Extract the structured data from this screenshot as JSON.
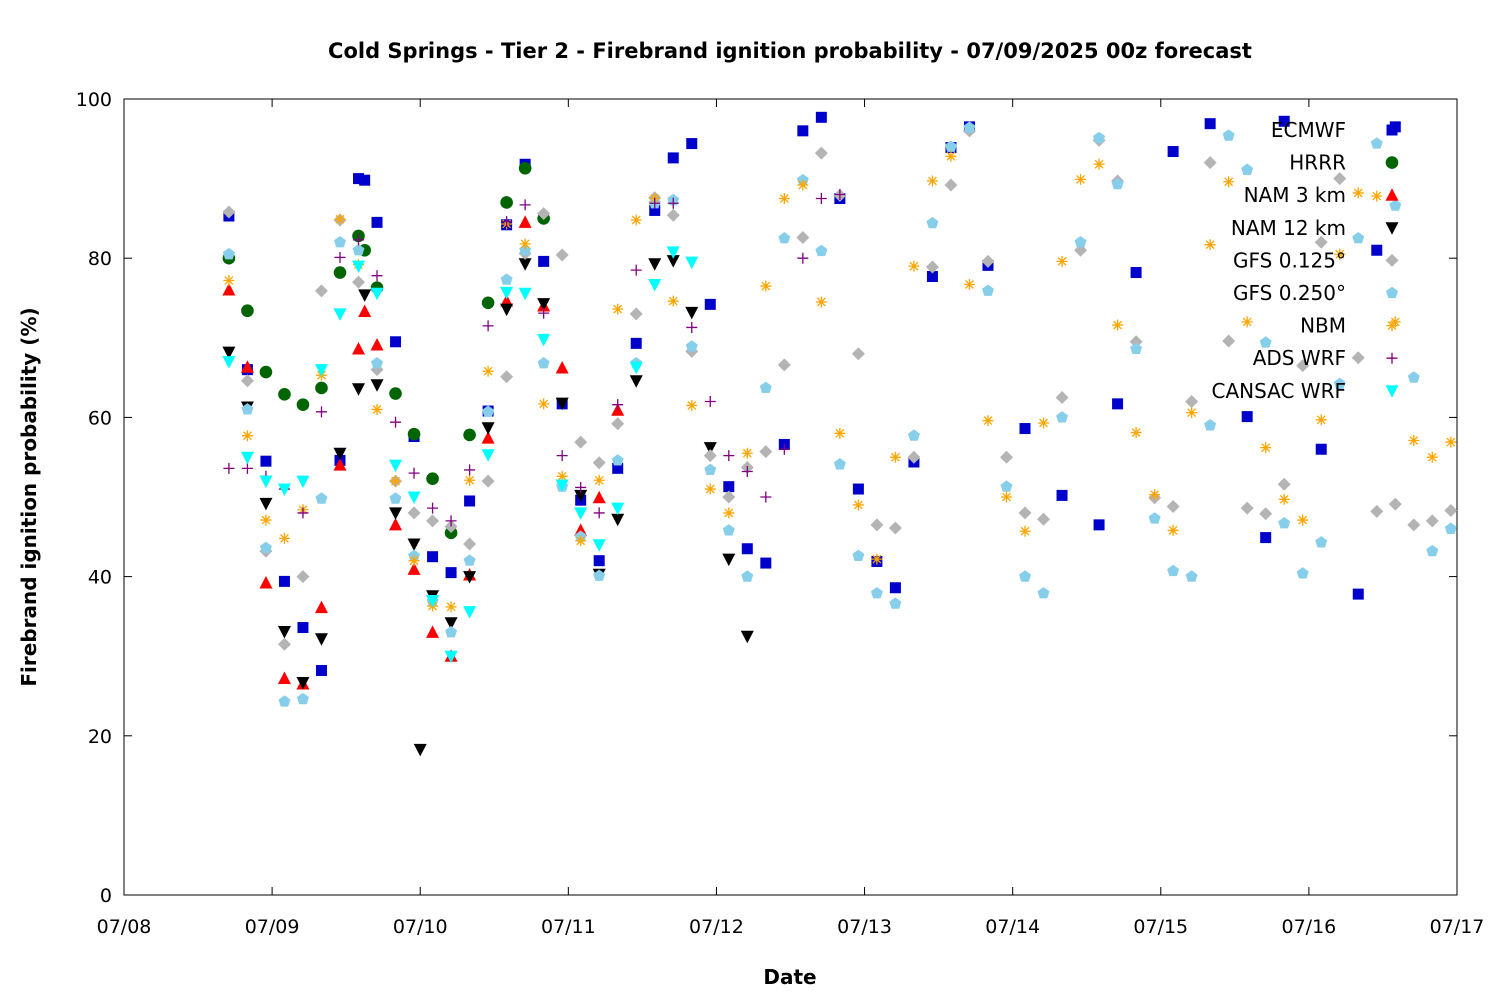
{
  "chart_data": {
    "type": "scatter",
    "title": "Cold Springs - Tier 2 - Firebrand ignition probability - 07/09/2025 00z forecast",
    "xlabel": "Date",
    "ylabel": "Firebrand ignition probability (%)",
    "x_axis": {
      "unit": "date",
      "range": [
        "07/08",
        "07/17"
      ],
      "ticks": [
        "07/08",
        "07/09",
        "07/10",
        "07/11",
        "07/12",
        "07/13",
        "07/14",
        "07/15",
        "07/16",
        "07/17"
      ]
    },
    "ylim": [
      0,
      100
    ],
    "y_ticks": [
      "0",
      "20",
      "40",
      "60",
      "80",
      "100"
    ],
    "grid": false,
    "legend_position": "top-right",
    "series": [
      {
        "name": "ECMWF",
        "color": "#0000cd",
        "marker": "square",
        "x": [
          "07/08 17:00",
          "07/08 20:00",
          "07/08 23:00",
          "07/09 02:00",
          "07/09 05:00",
          "07/09 08:00",
          "07/09 11:00",
          "07/09 14:00",
          "07/09 15:00",
          "07/09 17:00",
          "07/09 20:00",
          "07/09 23:00",
          "07/10 02:00",
          "07/10 05:00",
          "07/10 08:00",
          "07/10 11:00",
          "07/10 14:00",
          "07/10 17:00",
          "07/10 20:00",
          "07/10 23:00",
          "07/11 02:00",
          "07/11 05:00",
          "07/11 08:00",
          "07/11 11:00",
          "07/11 14:00",
          "07/11 17:00",
          "07/11 20:00",
          "07/11 23:00",
          "07/12 02:00",
          "07/12 05:00",
          "07/12 08:00",
          "07/12 11:00",
          "07/12 14:00",
          "07/12 17:00",
          "07/12 20:00",
          "07/12 23:00",
          "07/13 02:00",
          "07/13 05:00",
          "07/13 08:00",
          "07/13 11:00",
          "07/13 14:00",
          "07/13 17:00",
          "07/13 20:00",
          "07/14 02:00",
          "07/14 08:00",
          "07/14 14:00",
          "07/14 17:00",
          "07/14 20:00",
          "07/15 02:00",
          "07/15 08:00",
          "07/15 14:00",
          "07/15 17:00",
          "07/15 20:00",
          "07/16 02:00",
          "07/16 08:00",
          "07/16 11:00",
          "07/16 14:00"
        ],
        "values": [
          85.3,
          66,
          54.5,
          39.4,
          33.6,
          28.2,
          54.6,
          90,
          89.8,
          84.5,
          69.5,
          57.6,
          42.5,
          40.5,
          49.5,
          60.8,
          84.2,
          91.8,
          79.6,
          61.7,
          49.6,
          42,
          53.6,
          69.3,
          86,
          92.6,
          94.4,
          74.2,
          51.3,
          43.5,
          41.7,
          56.6,
          96,
          97.7,
          87.5,
          51,
          41.9,
          38.6,
          54.4,
          77.7,
          93.9,
          96.5,
          79.1,
          58.6,
          50.2,
          46.5,
          61.7,
          78.2,
          93.4,
          96.9,
          60.1,
          44.9,
          97.2,
          56,
          37.8,
          81,
          96.5
        ]
      },
      {
        "name": "HRRR",
        "color": "#006400",
        "marker": "circle",
        "x": [
          "07/08 17:00",
          "07/08 20:00",
          "07/08 23:00",
          "07/09 02:00",
          "07/09 05:00",
          "07/09 08:00",
          "07/09 11:00",
          "07/09 14:00",
          "07/09 15:00",
          "07/09 17:00",
          "07/09 20:00",
          "07/09 23:00",
          "07/10 02:00",
          "07/10 05:00",
          "07/10 08:00",
          "07/10 11:00",
          "07/10 14:00",
          "07/10 17:00",
          "07/10 20:00"
        ],
        "values": [
          80,
          73.4,
          65.7,
          62.9,
          61.6,
          63.7,
          78.2,
          82.8,
          81,
          76.3,
          63,
          57.9,
          52.3,
          45.5,
          57.8,
          74.4,
          87,
          91.3,
          85
        ]
      },
      {
        "name": "NAM 3 km",
        "color": "#ff0000",
        "marker": "triangle-up",
        "x": [
          "07/08 17:00",
          "07/08 20:00",
          "07/08 23:00",
          "07/09 02:00",
          "07/09 05:00",
          "07/09 08:00",
          "07/09 11:00",
          "07/09 14:00",
          "07/09 15:00",
          "07/09 17:00",
          "07/09 20:00",
          "07/09 23:00",
          "07/10 02:00",
          "07/10 05:00",
          "07/10 08:00",
          "07/10 11:00",
          "07/10 14:00",
          "07/10 17:00",
          "07/10 20:00",
          "07/10 23:00",
          "07/11 02:00",
          "07/11 05:00",
          "07/11 08:00"
        ],
        "values": [
          76,
          66.3,
          39.2,
          27.2,
          26.5,
          36.1,
          54,
          68.6,
          73.3,
          69.1,
          46.5,
          40.9,
          33,
          30,
          40.2,
          57.4,
          74.6,
          84.5,
          74,
          66.2,
          45.8,
          49.9,
          60.9
        ]
      },
      {
        "name": "NAM 12 km",
        "color": "#000000",
        "marker": "triangle-down",
        "x": [
          "07/08 17:00",
          "07/08 20:00",
          "07/08 23:00",
          "07/09 02:00",
          "07/09 05:00",
          "07/09 08:00",
          "07/09 11:00",
          "07/09 14:00",
          "07/09 15:00",
          "07/09 17:00",
          "07/09 20:00",
          "07/09 23:00",
          "07/10 00:00",
          "07/10 02:00",
          "07/10 05:00",
          "07/10 08:00",
          "07/10 11:00",
          "07/10 14:00",
          "07/10 17:00",
          "07/10 20:00",
          "07/10 23:00",
          "07/11 02:00",
          "07/11 05:00",
          "07/11 08:00",
          "07/11 11:00",
          "07/11 14:00",
          "07/11 17:00",
          "07/11 20:00",
          "07/11 23:00",
          "07/12 02:00",
          "07/12 05:00"
        ],
        "values": [
          68.2,
          61.3,
          49.2,
          33.1,
          26.7,
          32.2,
          55.5,
          63.6,
          75.4,
          64.1,
          48,
          44.1,
          18.3,
          37.6,
          34.2,
          40,
          58.7,
          73.6,
          79.3,
          74.3,
          61.8,
          50.2,
          40.3,
          47.2,
          64.6,
          79.3,
          79.7,
          73.2,
          56.2,
          42.2,
          32.5
        ]
      },
      {
        "name": "GFS 0.125°",
        "color": "#b4b4b4",
        "marker": "diamond",
        "x": [
          "07/08 17:00",
          "07/08 20:00",
          "07/08 23:00",
          "07/09 02:00",
          "07/09 05:00",
          "07/09 08:00",
          "07/09 11:00",
          "07/09 14:00",
          "07/09 17:00",
          "07/09 20:00",
          "07/09 23:00",
          "07/10 02:00",
          "07/10 05:00",
          "07/10 08:00",
          "07/10 11:00",
          "07/10 14:00",
          "07/10 17:00",
          "07/10 20:00",
          "07/10 23:00",
          "07/11 02:00",
          "07/11 05:00",
          "07/11 08:00",
          "07/11 11:00",
          "07/11 14:00",
          "07/11 17:00",
          "07/11 20:00",
          "07/11 23:00",
          "07/12 02:00",
          "07/12 05:00",
          "07/12 08:00",
          "07/12 11:00",
          "07/12 14:00",
          "07/12 17:00",
          "07/12 20:00",
          "07/12 23:00",
          "07/13 02:00",
          "07/13 05:00",
          "07/13 08:00",
          "07/13 11:00",
          "07/13 14:00",
          "07/13 17:00",
          "07/13 20:00",
          "07/13 23:00",
          "07/14 02:00",
          "07/14 05:00",
          "07/14 08:00",
          "07/14 11:00",
          "07/14 14:00",
          "07/14 17:00",
          "07/14 20:00",
          "07/14 23:00",
          "07/15 02:00",
          "07/15 05:00",
          "07/15 08:00",
          "07/15 11:00",
          "07/15 14:00",
          "07/15 17:00",
          "07/15 20:00",
          "07/15 23:00",
          "07/16 02:00",
          "07/16 05:00",
          "07/16 08:00",
          "07/16 11:00",
          "07/16 14:00",
          "07/16 17:00",
          "07/16 20:00",
          "07/16 23:00"
        ],
        "values": [
          85.8,
          64.6,
          43.2,
          31.5,
          40,
          75.9,
          84.8,
          77,
          66,
          52,
          48,
          47,
          46.3,
          44.1,
          52,
          65.1,
          80.6,
          85.6,
          80.4,
          56.9,
          54.3,
          59.2,
          73,
          87.6,
          85.4,
          68.3,
          55.2,
          50,
          53.7,
          55.7,
          66.6,
          82.6,
          93.2,
          87.9,
          68,
          46.5,
          46.1,
          55,
          78.9,
          89.2,
          96,
          79.6,
          55,
          48,
          47.2,
          62.5,
          81,
          94.8,
          89.7,
          69.5,
          49.9,
          48.8,
          62,
          92,
          69.6,
          48.6,
          47.9,
          51.6,
          66.5,
          82,
          90,
          67.5,
          48.2,
          49.1,
          46.5,
          47,
          48.3
        ]
      },
      {
        "name": "GFS 0.250°",
        "color": "#87ceeb",
        "marker": "pentagon",
        "x": [
          "07/08 17:00",
          "07/08 20:00",
          "07/08 23:00",
          "07/09 02:00",
          "07/09 05:00",
          "07/09 08:00",
          "07/09 11:00",
          "07/09 14:00",
          "07/09 17:00",
          "07/09 20:00",
          "07/09 23:00",
          "07/10 02:00",
          "07/10 05:00",
          "07/10 08:00",
          "07/10 11:00",
          "07/10 14:00",
          "07/10 17:00",
          "07/10 20:00",
          "07/10 23:00",
          "07/11 02:00",
          "07/11 05:00",
          "07/11 08:00",
          "07/11 11:00",
          "07/11 14:00",
          "07/11 17:00",
          "07/11 20:00",
          "07/11 23:00",
          "07/12 02:00",
          "07/12 05:00",
          "07/12 08:00",
          "07/12 11:00",
          "07/12 14:00",
          "07/12 17:00",
          "07/12 20:00",
          "07/12 23:00",
          "07/13 02:00",
          "07/13 05:00",
          "07/13 08:00",
          "07/13 11:00",
          "07/13 14:00",
          "07/13 17:00",
          "07/13 20:00",
          "07/13 23:00",
          "07/14 02:00",
          "07/14 05:00",
          "07/14 08:00",
          "07/14 11:00",
          "07/14 14:00",
          "07/14 17:00",
          "07/14 20:00",
          "07/14 23:00",
          "07/15 02:00",
          "07/15 05:00",
          "07/15 08:00",
          "07/15 11:00",
          "07/15 14:00",
          "07/15 17:00",
          "07/15 20:00",
          "07/15 23:00",
          "07/16 02:00",
          "07/16 05:00",
          "07/16 08:00",
          "07/16 11:00",
          "07/16 14:00",
          "07/16 17:00",
          "07/16 20:00",
          "07/16 23:00"
        ],
        "values": [
          80.5,
          61,
          43.6,
          24.3,
          24.6,
          49.8,
          82,
          81,
          66.8,
          49.8,
          42.6,
          36.9,
          33,
          42,
          60.7,
          77.3,
          81,
          66.8,
          51.3,
          45,
          40.1,
          54.6,
          66.8,
          86.9,
          87.3,
          68.9,
          53.4,
          45.8,
          40,
          63.7,
          82.5,
          89.8,
          80.9,
          54.1,
          42.6,
          37.9,
          36.6,
          57.7,
          84.4,
          94,
          96.4,
          75.9,
          51.3,
          40,
          37.9,
          60,
          82,
          95.1,
          89.3,
          68.6,
          47.3,
          40.7,
          40,
          59,
          95.4,
          91.1,
          69.4,
          46.7,
          40.4,
          44.3,
          64.2,
          82.5,
          94.4,
          86.6,
          65,
          43.2,
          46
        ]
      },
      {
        "name": "NBM",
        "color": "#ffa500",
        "marker": "asterisk",
        "x": [
          "07/08 17:00",
          "07/08 20:00",
          "07/08 23:00",
          "07/09 02:00",
          "07/09 05:00",
          "07/09 08:00",
          "07/09 11:00",
          "07/09 14:00",
          "07/09 17:00",
          "07/09 20:00",
          "07/09 23:00",
          "07/10 02:00",
          "07/10 05:00",
          "07/10 08:00",
          "07/10 11:00",
          "07/10 14:00",
          "07/10 17:00",
          "07/10 20:00",
          "07/10 23:00",
          "07/11 02:00",
          "07/11 05:00",
          "07/11 08:00",
          "07/11 11:00",
          "07/11 14:00",
          "07/11 17:00",
          "07/11 20:00",
          "07/11 23:00",
          "07/12 02:00",
          "07/12 05:00",
          "07/12 08:00",
          "07/12 11:00",
          "07/12 14:00",
          "07/12 17:00",
          "07/12 20:00",
          "07/12 23:00",
          "07/13 02:00",
          "07/13 05:00",
          "07/13 08:00",
          "07/13 11:00",
          "07/13 14:00",
          "07/13 17:00",
          "07/13 20:00",
          "07/13 23:00",
          "07/14 02:00",
          "07/14 05:00",
          "07/14 08:00",
          "07/14 11:00",
          "07/14 14:00",
          "07/14 17:00",
          "07/14 20:00",
          "07/14 23:00",
          "07/15 02:00",
          "07/15 05:00",
          "07/15 08:00",
          "07/15 11:00",
          "07/15 14:00",
          "07/15 17:00",
          "07/15 20:00",
          "07/15 23:00",
          "07/16 02:00",
          "07/16 05:00",
          "07/16 08:00",
          "07/16 11:00",
          "07/16 14:00",
          "07/16 17:00",
          "07/16 20:00",
          "07/16 23:00"
        ],
        "values": [
          77.2,
          57.7,
          47.1,
          44.8,
          48.4,
          65.3,
          84.9,
          79.2,
          61,
          52,
          42,
          36.3,
          36.2,
          52.1,
          65.8,
          84.3,
          81.8,
          61.7,
          52.6,
          44.5,
          52.1,
          73.6,
          84.8,
          87.5,
          74.6,
          61.5,
          51,
          48,
          55.5,
          76.5,
          87.5,
          89.2,
          74.5,
          58,
          49,
          42.2,
          55,
          79,
          89.7,
          92.8,
          76.7,
          59.6,
          50,
          45.7,
          59.3,
          79.6,
          89.9,
          91.8,
          71.6,
          58.1,
          50.3,
          45.8,
          60.6,
          81.7,
          89.6,
          72,
          56.2,
          49.7,
          47.1,
          59.7,
          80.5,
          88.2,
          87.8,
          72,
          57.1,
          55,
          56.9
        ]
      },
      {
        "name": "ADS WRF",
        "color": "#800080",
        "marker": "plus",
        "x": [
          "07/08 17:00",
          "07/08 20:00",
          "07/08 23:00",
          "07/09 02:00",
          "07/09 05:00",
          "07/09 08:00",
          "07/09 11:00",
          "07/09 14:00",
          "07/09 17:00",
          "07/09 20:00",
          "07/09 23:00",
          "07/10 02:00",
          "07/10 05:00",
          "07/10 08:00",
          "07/10 11:00",
          "07/10 14:00",
          "07/10 17:00",
          "07/10 20:00",
          "07/10 23:00",
          "07/11 02:00",
          "07/11 05:00",
          "07/11 08:00",
          "07/11 11:00",
          "07/11 14:00",
          "07/11 17:00",
          "07/11 20:00",
          "07/11 23:00",
          "07/12 02:00",
          "07/12 05:00",
          "07/12 08:00",
          "07/12 11:00",
          "07/12 14:00",
          "07/12 17:00",
          "07/12 20:00"
        ],
        "values": [
          53.6,
          53.6,
          52.6,
          51,
          48,
          60.7,
          80.1,
          82.3,
          77.8,
          59.4,
          53,
          48.6,
          47,
          53.4,
          71.5,
          84.6,
          86.7,
          73.1,
          55.2,
          51.2,
          48,
          61.6,
          78.5,
          86.9,
          86.9,
          71.3,
          62,
          55.2,
          53.2,
          50,
          56,
          80,
          87.5,
          88
        ]
      },
      {
        "name": "CANSAC WRF",
        "color": "#00ffff",
        "marker": "triangle-down",
        "x": [
          "07/08 17:00",
          "07/08 20:00",
          "07/08 23:00",
          "07/09 02:00",
          "07/09 05:00",
          "07/09 08:00",
          "07/09 11:00",
          "07/09 14:00",
          "07/09 17:00",
          "07/09 20:00",
          "07/09 23:00",
          "07/10 02:00",
          "07/10 05:00",
          "07/10 08:00",
          "07/10 11:00",
          "07/10 14:00",
          "07/10 17:00",
          "07/10 20:00",
          "07/10 23:00",
          "07/11 02:00",
          "07/11 05:00",
          "07/11 08:00",
          "07/11 11:00",
          "07/11 14:00",
          "07/11 17:00",
          "07/11 20:00"
        ],
        "values": [
          67,
          55,
          52,
          51,
          52,
          66,
          73,
          79,
          75.6,
          54,
          50,
          37,
          30,
          35.6,
          55.3,
          75.7,
          75.6,
          69.8,
          51.5,
          48,
          44,
          48.6,
          66.3,
          76.7,
          80.8,
          79.5
        ]
      }
    ]
  }
}
